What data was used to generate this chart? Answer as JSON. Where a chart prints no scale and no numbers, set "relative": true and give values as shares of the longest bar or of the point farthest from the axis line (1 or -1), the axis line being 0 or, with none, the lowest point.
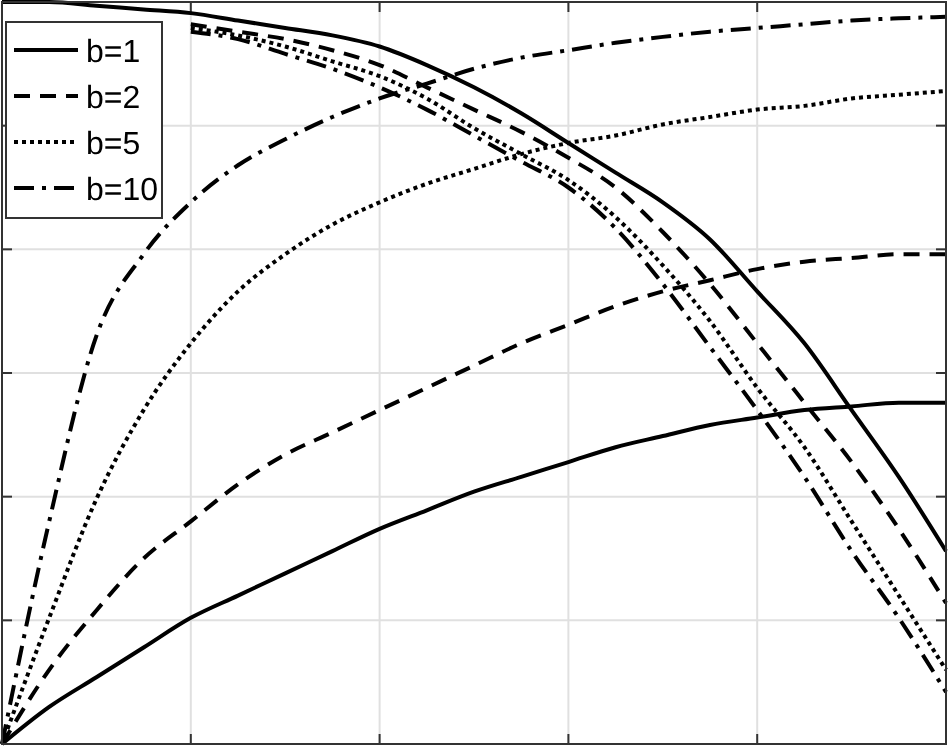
{
  "chart_data": {
    "type": "line",
    "relative": true,
    "grid": true,
    "legend": "top left",
    "categories": [
      null,
      null,
      null,
      null,
      null,
      null,
      null,
      null,
      null,
      null,
      null,
      null,
      null,
      null,
      null,
      null,
      null,
      null,
      null,
      null,
      null
    ],
    "series": [
      {
        "name": "b=1",
        "color": "#000000",
        "line_style": "solid",
        "values": [
          0,
          0.05,
          0.09,
          0.13,
          0.17,
          0.2,
          0.23,
          0.26,
          0.29,
          0.315,
          0.34,
          0.36,
          0.38,
          0.4,
          0.415,
          0.43,
          0.44,
          0.45,
          0.455,
          0.46,
          0.46
        ]
      },
      {
        "name": "b=2",
        "color": "#000000",
        "line_style": "dashed",
        "values": [
          0,
          0.1,
          0.18,
          0.25,
          0.3,
          0.35,
          0.39,
          0.42,
          0.45,
          0.48,
          0.51,
          0.54,
          0.565,
          0.59,
          0.61,
          0.625,
          0.64,
          0.65,
          0.655,
          0.66,
          0.66
        ]
      },
      {
        "name": "b=5",
        "color": "#000000",
        "line_style": "dotted",
        "values": [
          0,
          0.17,
          0.33,
          0.45,
          0.54,
          0.61,
          0.66,
          0.7,
          0.73,
          0.755,
          0.775,
          0.795,
          0.81,
          0.82,
          0.835,
          0.845,
          0.855,
          0.86,
          0.87,
          0.875,
          0.88
        ]
      },
      {
        "name": "b=10",
        "color": "#000000",
        "line_style": "dashdot",
        "values": [
          0,
          0.3,
          0.55,
          0.66,
          0.73,
          0.78,
          0.815,
          0.845,
          0.87,
          0.89,
          0.91,
          0.925,
          0.935,
          0.945,
          0.953,
          0.96,
          0.965,
          0.97,
          0.975,
          0.978,
          0.98
        ]
      },
      {
        "color": "#000000",
        "line_style": "solid",
        "values": [
          1,
          1,
          0.995,
          0.99,
          0.985,
          0.975,
          0.965,
          0.955,
          0.94,
          0.915,
          0.885,
          0.85,
          0.81,
          0.77,
          0.73,
          0.68,
          0.61,
          0.54,
          0.45,
          0.36,
          0.26
        ]
      },
      {
        "color": "#000000",
        "line_style": "dashed",
        "values": [
          null,
          null,
          null,
          null,
          0.97,
          0.96,
          0.95,
          0.935,
          0.915,
          0.885,
          0.855,
          0.825,
          0.79,
          0.75,
          0.69,
          0.62,
          0.54,
          0.46,
          0.38,
          0.29,
          0.19
        ]
      },
      {
        "color": "#000000",
        "line_style": "dotted",
        "values": [
          null,
          null,
          null,
          null,
          0.965,
          0.955,
          0.94,
          0.92,
          0.9,
          0.87,
          0.83,
          0.795,
          0.76,
          0.71,
          0.645,
          0.57,
          0.48,
          0.4,
          0.3,
          0.2,
          0.1
        ]
      },
      {
        "color": "#000000",
        "line_style": "dashdot",
        "values": [
          null,
          null,
          null,
          null,
          0.96,
          0.95,
          0.93,
          0.91,
          0.885,
          0.855,
          0.82,
          0.785,
          0.75,
          0.695,
          0.62,
          0.535,
          0.45,
          0.36,
          0.26,
          0.17,
          0.07
        ]
      }
    ]
  }
}
